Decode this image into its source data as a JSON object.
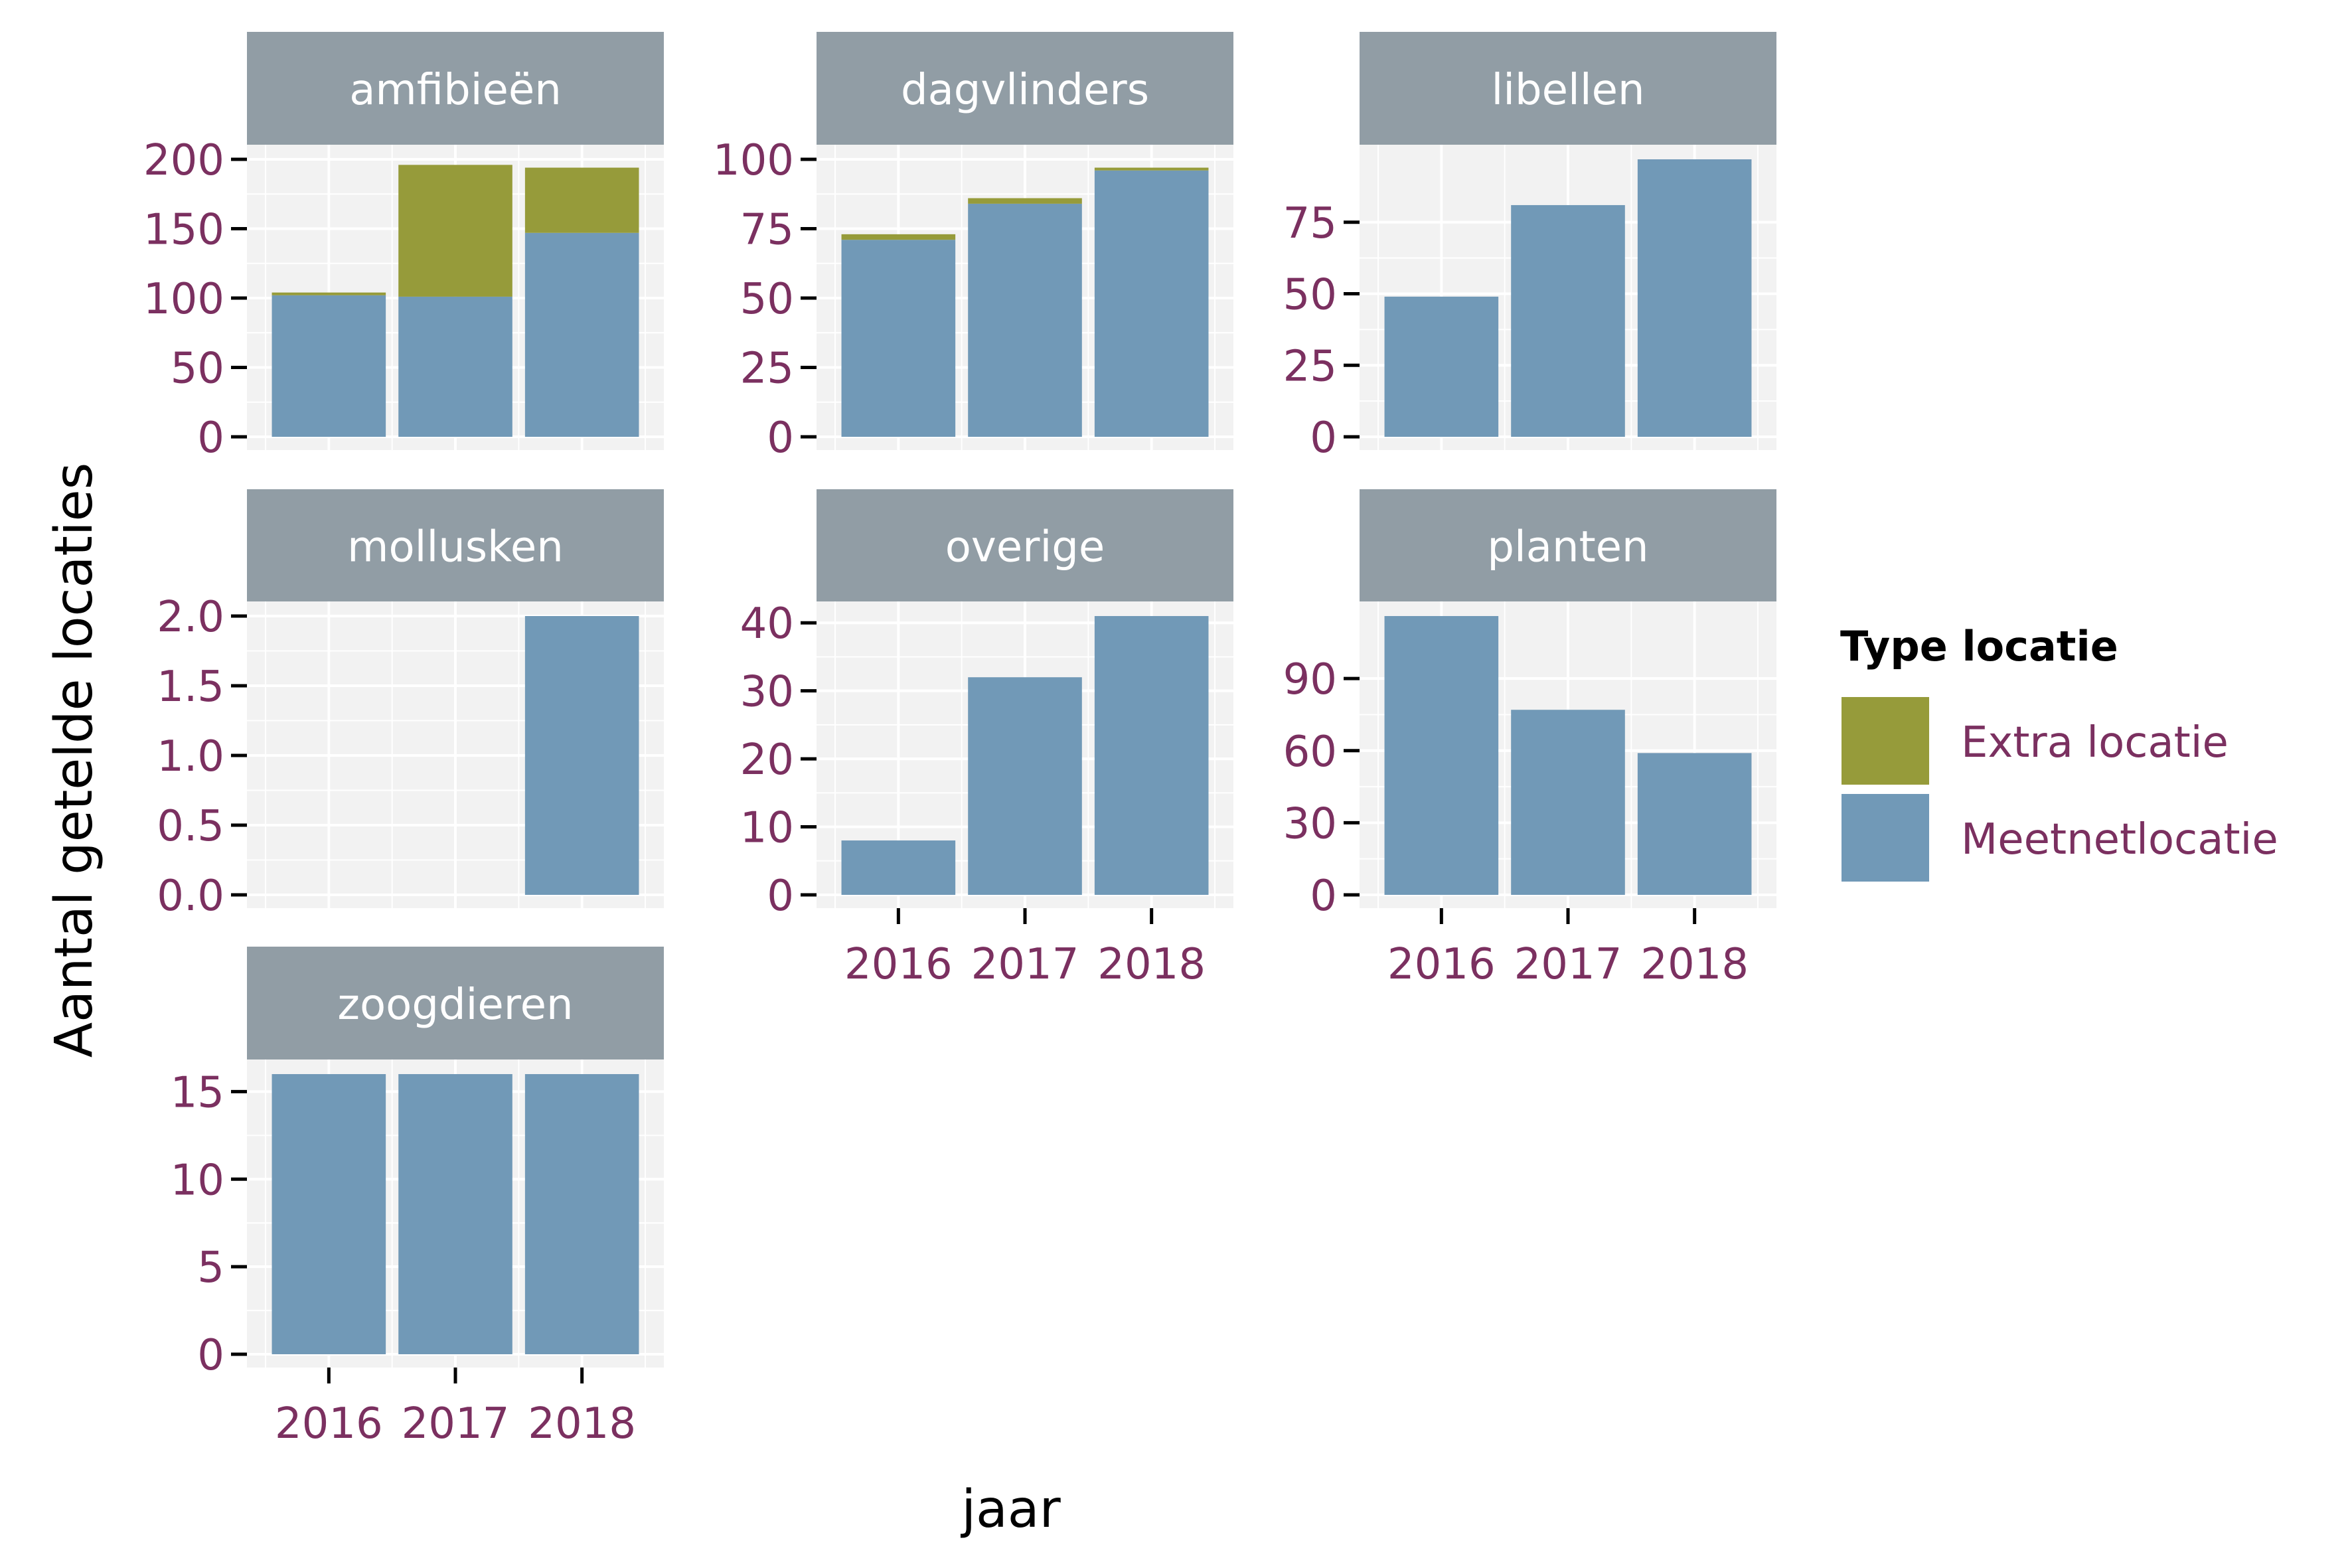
{
  "colors": {
    "extra": "#969B3A",
    "meetnet": "#7199B7",
    "strip": "#919DA5",
    "panel": "#F2F2F2",
    "grid": "#FFFFFF",
    "tick_text": "#7B3060",
    "text": "#000000",
    "strip_text": "#FFFFFF"
  },
  "chart_data": {
    "type": "bar",
    "stacked": true,
    "xlabel": "jaar",
    "ylabel": "Aantal getelde locaties",
    "categories": [
      "2016",
      "2017",
      "2018"
    ],
    "legend": {
      "title": "Type locatie",
      "position": "right",
      "items": [
        {
          "label": "Extra locatie",
          "color_key": "extra"
        },
        {
          "label": "Meetnetlocatie",
          "color_key": "meetnet"
        }
      ]
    },
    "grid": true,
    "facets": [
      {
        "label": "amfibieën",
        "ylim": [
          0,
          200
        ],
        "yticks": [
          0,
          50,
          100,
          150,
          200
        ],
        "tick_labels": [
          "0",
          "50",
          "100",
          "150",
          "200"
        ],
        "series": [
          {
            "name": "Meetnetlocatie",
            "values": [
              102,
              101,
              147
            ]
          },
          {
            "name": "Extra locatie",
            "values": [
              2,
              95,
              47
            ]
          }
        ]
      },
      {
        "label": "dagvlinders",
        "ylim": [
          0,
          100
        ],
        "yticks": [
          0,
          25,
          50,
          75,
          100
        ],
        "tick_labels": [
          "0",
          "25",
          "50",
          "75",
          "100"
        ],
        "series": [
          {
            "name": "Meetnetlocatie",
            "values": [
              71,
              84,
              96
            ]
          },
          {
            "name": "Extra locatie",
            "values": [
              2,
              2,
              1
            ]
          }
        ]
      },
      {
        "label": "libellen",
        "ylim": [
          0,
          97
        ],
        "yticks": [
          0,
          25,
          50,
          75
        ],
        "tick_labels": [
          "0",
          "25",
          "50",
          "75"
        ],
        "series": [
          {
            "name": "Meetnetlocatie",
            "values": [
              49,
              81,
              97
            ]
          },
          {
            "name": "Extra locatie",
            "values": [
              0,
              0,
              0
            ]
          }
        ]
      },
      {
        "label": "mollusken",
        "ylim": [
          0,
          2
        ],
        "yticks": [
          0,
          0.5,
          1,
          1.5,
          2
        ],
        "tick_labels": [
          "0.0",
          "0.5",
          "1.0",
          "1.5",
          "2.0"
        ],
        "series": [
          {
            "name": "Meetnetlocatie",
            "values": [
              0,
              0,
              2
            ]
          },
          {
            "name": "Extra locatie",
            "values": [
              0,
              0,
              0
            ]
          }
        ]
      },
      {
        "label": "overige",
        "ylim": [
          0,
          41
        ],
        "yticks": [
          0,
          10,
          20,
          30,
          40
        ],
        "tick_labels": [
          "0",
          "10",
          "20",
          "30",
          "40"
        ],
        "series": [
          {
            "name": "Meetnetlocatie",
            "values": [
              8,
              32,
              41
            ]
          },
          {
            "name": "Extra locatie",
            "values": [
              0,
              0,
              0
            ]
          }
        ]
      },
      {
        "label": "planten",
        "ylim": [
          0,
          116
        ],
        "yticks": [
          0,
          30,
          60,
          90
        ],
        "tick_labels": [
          "0",
          "30",
          "60",
          "90"
        ],
        "series": [
          {
            "name": "Meetnetlocatie",
            "values": [
              116,
              77,
              59
            ]
          },
          {
            "name": "Extra locatie",
            "values": [
              0,
              0,
              0
            ]
          }
        ]
      },
      {
        "label": "zoogdieren",
        "ylim": [
          0,
          16
        ],
        "yticks": [
          0,
          5,
          10,
          15
        ],
        "tick_labels": [
          "0",
          "5",
          "10",
          "15"
        ],
        "series": [
          {
            "name": "Meetnetlocatie",
            "values": [
              16,
              16,
              16
            ]
          },
          {
            "name": "Extra locatie",
            "values": [
              0,
              0,
              0
            ]
          }
        ]
      }
    ]
  }
}
